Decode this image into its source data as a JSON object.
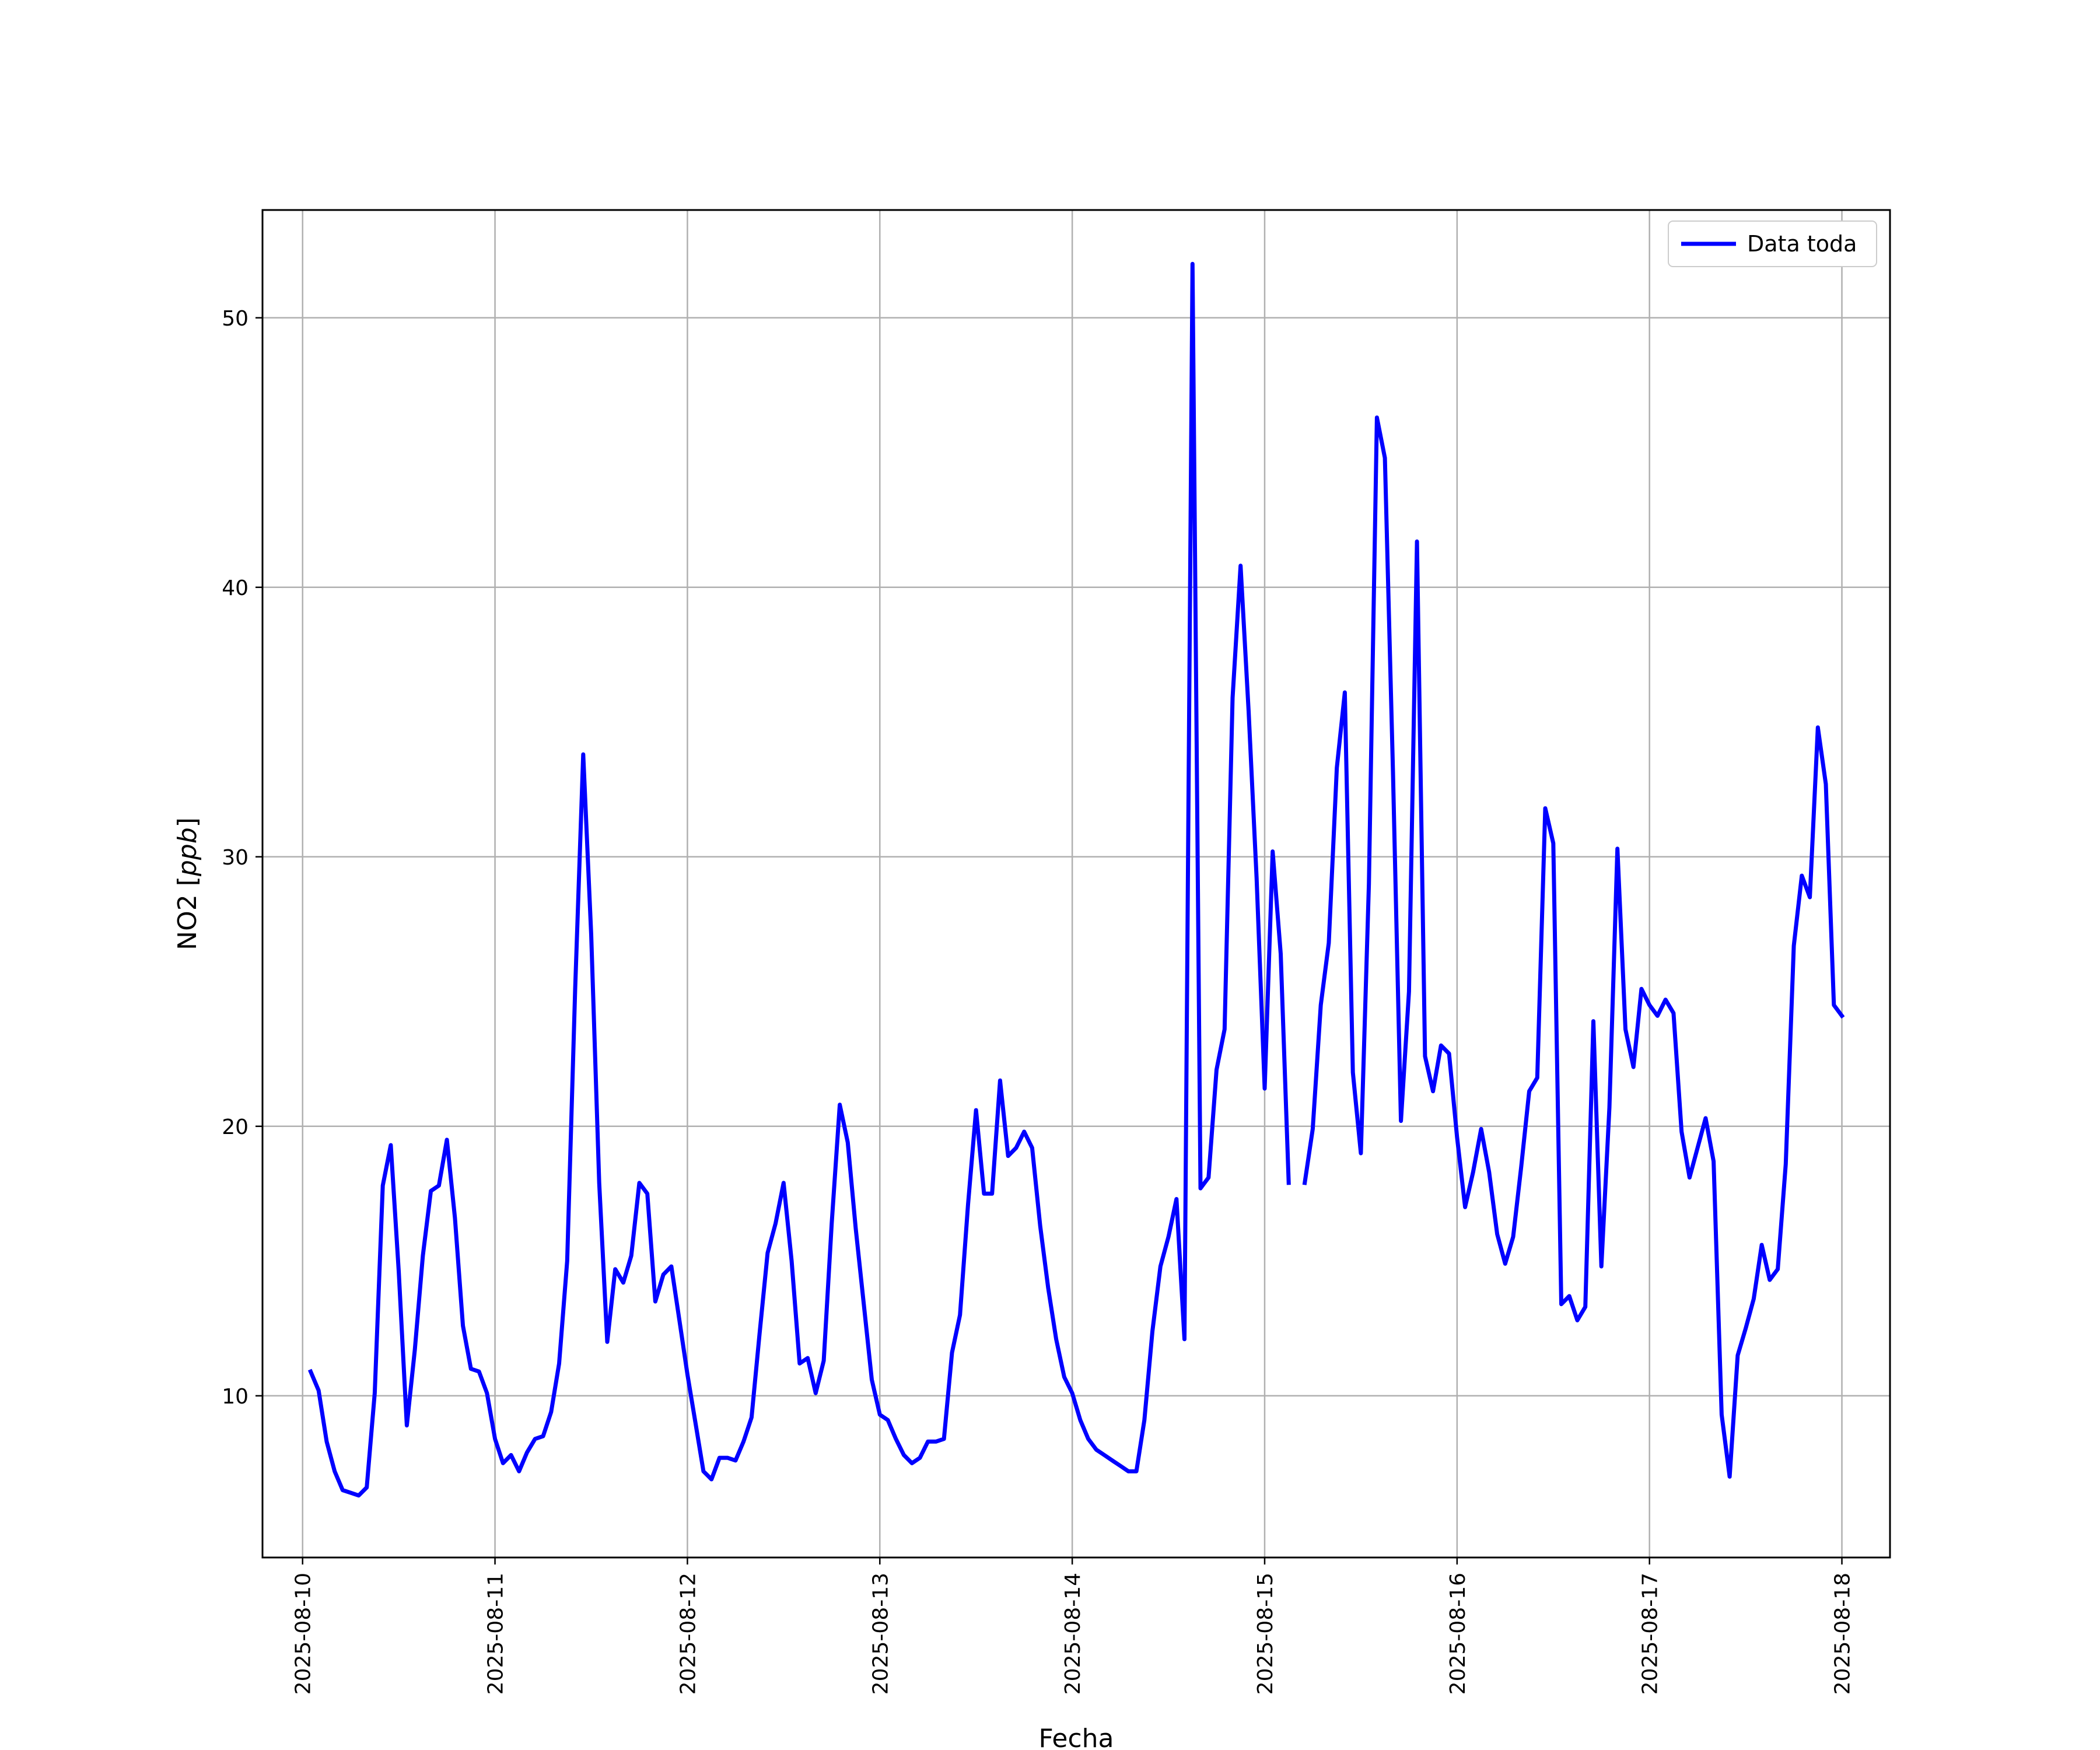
{
  "chart_data": {
    "type": "line",
    "xlabel": "Fecha",
    "ylabel_text": "NO2 [",
    "ylabel_unit": "ppb",
    "ylabel_close": "]",
    "xlim": [
      "2025-08-09T19:00",
      "2025-08-18T06:00"
    ],
    "ylim": [
      4,
      54
    ],
    "x_ticks": [
      "2025-08-10",
      "2025-08-11",
      "2025-08-12",
      "2025-08-13",
      "2025-08-14",
      "2025-08-15",
      "2025-08-16",
      "2025-08-17",
      "2025-08-18"
    ],
    "y_ticks": [
      10,
      20,
      30,
      40,
      50
    ],
    "grid": true,
    "legend_position": "top-right",
    "series": [
      {
        "name": "Data toda",
        "color": "#0000ff",
        "x": [
          "2025-08-10T01:00",
          "2025-08-10T02:00",
          "2025-08-10T03:00",
          "2025-08-10T04:00",
          "2025-08-10T05:00",
          "2025-08-10T06:00",
          "2025-08-10T07:00",
          "2025-08-10T08:00",
          "2025-08-10T09:00",
          "2025-08-10T10:00",
          "2025-08-10T11:00",
          "2025-08-10T12:00",
          "2025-08-10T13:00",
          "2025-08-10T14:00",
          "2025-08-10T15:00",
          "2025-08-10T16:00",
          "2025-08-10T17:00",
          "2025-08-10T18:00",
          "2025-08-10T19:00",
          "2025-08-10T20:00",
          "2025-08-10T21:00",
          "2025-08-10T22:00",
          "2025-08-10T23:00",
          "2025-08-11T00:00",
          "2025-08-11T01:00",
          "2025-08-11T02:00",
          "2025-08-11T03:00",
          "2025-08-11T04:00",
          "2025-08-11T05:00",
          "2025-08-11T06:00",
          "2025-08-11T07:00",
          "2025-08-11T08:00",
          "2025-08-11T09:00",
          "2025-08-11T10:00",
          "2025-08-11T11:00",
          "2025-08-11T12:00",
          "2025-08-11T13:00",
          "2025-08-11T14:00",
          "2025-08-11T15:00",
          "2025-08-11T16:00",
          "2025-08-11T17:00",
          "2025-08-11T18:00",
          "2025-08-11T19:00",
          "2025-08-11T20:00",
          "2025-08-11T21:00",
          "2025-08-11T22:00",
          "2025-08-11T23:00",
          "2025-08-12T00:00",
          "2025-08-12T01:00",
          "2025-08-12T02:00",
          "2025-08-12T03:00",
          "2025-08-12T04:00",
          "2025-08-12T05:00",
          "2025-08-12T06:00",
          "2025-08-12T07:00",
          "2025-08-12T08:00",
          "2025-08-12T09:00",
          "2025-08-12T10:00",
          "2025-08-12T11:00",
          "2025-08-12T12:00",
          "2025-08-12T13:00",
          "2025-08-12T14:00",
          "2025-08-12T15:00",
          "2025-08-12T16:00",
          "2025-08-12T17:00",
          "2025-08-12T18:00",
          "2025-08-12T19:00",
          "2025-08-12T20:00",
          "2025-08-12T21:00",
          "2025-08-12T22:00",
          "2025-08-12T23:00",
          "2025-08-13T00:00",
          "2025-08-13T01:00",
          "2025-08-13T02:00",
          "2025-08-13T03:00",
          "2025-08-13T04:00",
          "2025-08-13T05:00",
          "2025-08-13T06:00",
          "2025-08-13T07:00",
          "2025-08-13T08:00",
          "2025-08-13T09:00",
          "2025-08-13T10:00",
          "2025-08-13T11:00",
          "2025-08-13T12:00",
          "2025-08-13T13:00",
          "2025-08-13T14:00",
          "2025-08-13T15:00",
          "2025-08-13T16:00",
          "2025-08-13T17:00",
          "2025-08-13T18:00",
          "2025-08-13T19:00",
          "2025-08-13T20:00",
          "2025-08-13T21:00",
          "2025-08-13T22:00",
          "2025-08-13T23:00",
          "2025-08-14T00:00",
          "2025-08-14T01:00",
          "2025-08-14T02:00",
          "2025-08-14T03:00",
          "2025-08-14T04:00",
          "2025-08-14T05:00",
          "2025-08-14T06:00",
          "2025-08-14T07:00",
          "2025-08-14T08:00",
          "2025-08-14T09:00",
          "2025-08-14T10:00",
          "2025-08-14T11:00",
          "2025-08-14T12:00",
          "2025-08-14T13:00",
          "2025-08-14T14:00",
          "2025-08-14T15:00",
          "2025-08-14T16:00",
          "2025-08-14T17:00",
          "2025-08-14T18:00",
          "2025-08-14T19:00",
          "2025-08-14T20:00",
          "2025-08-14T21:00",
          "2025-08-14T22:00",
          "2025-08-14T23:00",
          "2025-08-15T00:00",
          "2025-08-15T01:00",
          "2025-08-15T02:00",
          "2025-08-15T03:00",
          "2025-08-15T04:00",
          "2025-08-15T05:00",
          "2025-08-15T06:00",
          "2025-08-15T07:00",
          "2025-08-15T08:00",
          "2025-08-15T09:00",
          "2025-08-15T10:00",
          "2025-08-15T11:00",
          "2025-08-15T12:00",
          "2025-08-15T13:00",
          "2025-08-15T14:00",
          "2025-08-15T15:00",
          "2025-08-15T16:00",
          "2025-08-15T17:00",
          "2025-08-15T18:00",
          "2025-08-15T19:00",
          "2025-08-15T20:00",
          "2025-08-15T21:00",
          "2025-08-15T22:00",
          "2025-08-15T23:00",
          "2025-08-16T00:00",
          "2025-08-16T01:00",
          "2025-08-16T02:00",
          "2025-08-16T03:00",
          "2025-08-16T04:00",
          "2025-08-16T05:00",
          "2025-08-16T06:00",
          "2025-08-16T07:00",
          "2025-08-16T08:00",
          "2025-08-16T09:00",
          "2025-08-16T10:00",
          "2025-08-16T11:00",
          "2025-08-16T12:00",
          "2025-08-16T13:00",
          "2025-08-16T14:00",
          "2025-08-16T15:00",
          "2025-08-16T16:00",
          "2025-08-16T17:00",
          "2025-08-16T18:00",
          "2025-08-16T19:00",
          "2025-08-16T20:00",
          "2025-08-16T21:00",
          "2025-08-16T22:00",
          "2025-08-16T23:00",
          "2025-08-17T00:00",
          "2025-08-17T01:00",
          "2025-08-17T02:00",
          "2025-08-17T03:00",
          "2025-08-17T04:00",
          "2025-08-17T05:00",
          "2025-08-17T06:00",
          "2025-08-17T07:00",
          "2025-08-17T08:00",
          "2025-08-17T09:00",
          "2025-08-17T10:00",
          "2025-08-17T11:00",
          "2025-08-17T12:00",
          "2025-08-17T13:00",
          "2025-08-17T14:00",
          "2025-08-17T15:00",
          "2025-08-17T16:00",
          "2025-08-17T17:00",
          "2025-08-17T18:00",
          "2025-08-17T19:00",
          "2025-08-17T20:00",
          "2025-08-17T21:00",
          "2025-08-17T22:00",
          "2025-08-17T23:00",
          "2025-08-18T00:00"
        ],
        "y": [
          10.9,
          10.2,
          8.3,
          7.2,
          6.5,
          6.4,
          6.3,
          6.6,
          10.1,
          17.8,
          19.3,
          14.6,
          8.9,
          11.7,
          15.2,
          17.6,
          17.8,
          19.5,
          16.6,
          12.6,
          11.0,
          10.9,
          10.1,
          8.4,
          7.5,
          7.8,
          7.2,
          7.9,
          8.4,
          8.5,
          9.4,
          11.2,
          15.0,
          25.1,
          33.8,
          27.1,
          17.9,
          12.0,
          14.7,
          14.2,
          15.2,
          17.9,
          17.5,
          13.5,
          14.5,
          14.8,
          12.8,
          10.8,
          9.0,
          7.2,
          6.9,
          7.7,
          7.7,
          7.6,
          8.3,
          9.2,
          12.3,
          15.3,
          16.4,
          17.9,
          15.0,
          11.2,
          11.4,
          10.1,
          11.3,
          16.4,
          20.8,
          19.4,
          16.2,
          13.4,
          10.6,
          9.3,
          9.1,
          8.4,
          7.8,
          7.5,
          7.7,
          8.3,
          8.3,
          8.4,
          11.6,
          13.0,
          17.1,
          20.6,
          17.5,
          17.5,
          21.7,
          18.9,
          19.2,
          19.8,
          19.2,
          16.3,
          14.0,
          12.1,
          10.7,
          10.1,
          9.1,
          8.4,
          8.0,
          7.8,
          7.6,
          7.4,
          7.2,
          7.2,
          9.1,
          12.4,
          14.8,
          15.9,
          17.3,
          12.1,
          52.0,
          17.7,
          18.1,
          22.1,
          23.6,
          35.9,
          40.8,
          35.4,
          29.2,
          21.4,
          30.2,
          26.4,
          17.9,
          null,
          17.9,
          19.9,
          24.5,
          26.8,
          33.3,
          36.1,
          22.0,
          19.0,
          29.0,
          46.3,
          44.8,
          33.2,
          20.2,
          25.0,
          41.7,
          22.6,
          21.3,
          23.0,
          22.7,
          19.6,
          17.0,
          18.3,
          19.9,
          18.3,
          16.0,
          14.9,
          15.9,
          18.5,
          21.3,
          21.8,
          31.8,
          30.5,
          13.4,
          13.7,
          12.8,
          13.3,
          23.9,
          14.8,
          20.7,
          30.3,
          23.6,
          22.2,
          25.1,
          24.5,
          24.1,
          24.7,
          24.2,
          19.8,
          18.1,
          19.2,
          20.3,
          18.7,
          9.3,
          7.0,
          11.5,
          12.5,
          13.6,
          15.6,
          14.3,
          14.7,
          18.6,
          26.7,
          29.3,
          28.5,
          34.8,
          32.7,
          24.5,
          24.1
        ]
      }
    ]
  }
}
